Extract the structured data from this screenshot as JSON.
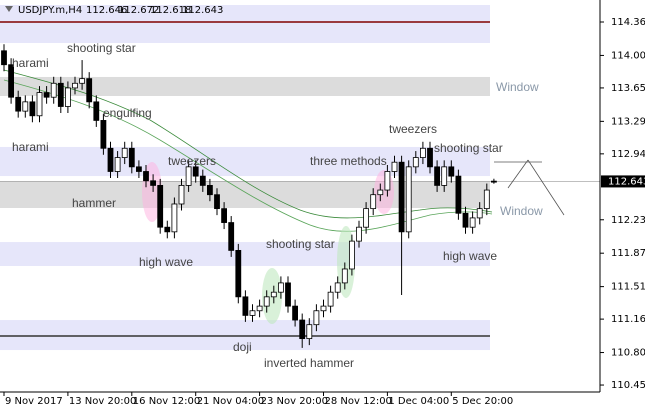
{
  "header": {
    "symbol": "USDJPY.m,H4",
    "open": 112.646,
    "high": 112.672,
    "low": 112.618,
    "close": 112.643
  },
  "annotations": [
    "harami",
    "shooting star",
    "engulfing",
    "harami",
    "hammer",
    "tweezers",
    "high wave",
    "three methods",
    "tweezers",
    "shooting star",
    "Window",
    "Window",
    "shooting star",
    "high wave",
    "doji",
    "inverted hammer"
  ],
  "chart_data": {
    "type": "candlestick",
    "categories": [
      "9 Nov 2017",
      null,
      null,
      null,
      null,
      null,
      null,
      null,
      null,
      "13 Nov 20:00",
      null,
      null,
      null,
      null,
      null,
      null,
      null,
      null,
      "16 Nov 12:00",
      null,
      null,
      null,
      null,
      null,
      null,
      null,
      null,
      "21 Nov 04:00",
      null,
      null,
      null,
      null,
      null,
      null,
      null,
      null,
      "23 Nov 20:00",
      null,
      null,
      null,
      null,
      null,
      null,
      null,
      null,
      "28 Nov 12:00",
      null,
      null,
      null,
      null,
      null,
      null,
      null,
      null,
      "1 Dec 04:00",
      null,
      null,
      null,
      null,
      null,
      null,
      null,
      null,
      "5 Dec 20:00",
      null,
      null,
      null,
      null,
      null,
      null
    ],
    "open": [
      114.05,
      113.9,
      113.55,
      113.4,
      113.5,
      113.35,
      113.6,
      113.55,
      113.7,
      113.45,
      113.65,
      113.7,
      113.75,
      113.5,
      113.3,
      113.0,
      112.75,
      112.9,
      113.0,
      112.8,
      112.75,
      112.65,
      112.6,
      112.15,
      112.1,
      112.4,
      112.6,
      112.8,
      112.7,
      112.6,
      112.5,
      112.35,
      112.2,
      111.9,
      111.4,
      111.2,
      111.25,
      111.3,
      111.4,
      111.45,
      111.55,
      111.3,
      111.15,
      110.95,
      111.1,
      111.25,
      111.3,
      111.45,
      111.55,
      111.7,
      112.0,
      112.15,
      112.35,
      112.5,
      112.55,
      112.75,
      112.85,
      112.1,
      112.8,
      112.9,
      113.0,
      112.8,
      112.6,
      112.8,
      112.7,
      112.3,
      112.15,
      112.25,
      112.35,
      112.646
    ],
    "high": [
      114.12,
      113.97,
      113.62,
      113.57,
      113.57,
      113.67,
      113.67,
      113.77,
      113.77,
      113.72,
      113.77,
      113.95,
      113.82,
      113.57,
      113.37,
      113.07,
      112.97,
      113.07,
      113.07,
      112.87,
      112.82,
      112.72,
      112.67,
      112.22,
      112.47,
      112.67,
      112.87,
      112.87,
      112.77,
      112.67,
      112.57,
      112.42,
      112.27,
      111.97,
      111.47,
      111.32,
      111.37,
      111.47,
      111.52,
      111.62,
      111.62,
      111.37,
      111.22,
      111.17,
      111.32,
      111.37,
      111.52,
      111.62,
      111.77,
      112.07,
      112.22,
      112.42,
      112.57,
      112.62,
      112.82,
      112.92,
      112.92,
      112.87,
      112.97,
      113.07,
      113.07,
      112.87,
      112.87,
      112.87,
      112.77,
      112.37,
      112.32,
      112.42,
      112.62,
      112.672
    ],
    "low": [
      113.83,
      113.48,
      113.33,
      113.33,
      113.28,
      113.28,
      113.48,
      113.48,
      113.38,
      113.38,
      113.58,
      113.63,
      113.43,
      113.23,
      112.93,
      112.68,
      112.68,
      112.83,
      112.73,
      112.68,
      112.58,
      112.53,
      112.08,
      112.03,
      112.03,
      112.33,
      112.53,
      112.63,
      112.53,
      112.43,
      112.28,
      112.13,
      111.83,
      111.33,
      111.13,
      111.13,
      111.18,
      111.23,
      111.33,
      111.38,
      111.23,
      111.08,
      110.85,
      110.88,
      111.03,
      111.18,
      111.23,
      111.38,
      111.48,
      111.63,
      111.93,
      112.08,
      112.28,
      112.43,
      112.48,
      112.68,
      111.42,
      112.03,
      112.73,
      112.83,
      112.73,
      112.53,
      112.53,
      112.63,
      112.23,
      112.08,
      112.08,
      112.18,
      112.28,
      112.618
    ],
    "close": [
      113.9,
      113.55,
      113.4,
      113.5,
      113.35,
      113.6,
      113.55,
      113.7,
      113.45,
      113.65,
      113.7,
      113.75,
      113.5,
      113.3,
      113.0,
      112.75,
      112.9,
      113.0,
      112.8,
      112.75,
      112.65,
      112.6,
      112.15,
      112.1,
      112.4,
      112.6,
      112.8,
      112.7,
      112.6,
      112.5,
      112.35,
      112.2,
      111.9,
      111.4,
      111.2,
      111.25,
      111.3,
      111.4,
      111.45,
      111.55,
      111.3,
      111.15,
      110.95,
      111.1,
      111.25,
      111.3,
      111.45,
      111.55,
      111.7,
      112.0,
      112.15,
      112.35,
      112.5,
      112.55,
      112.75,
      112.85,
      112.1,
      112.8,
      112.9,
      113.0,
      112.8,
      112.6,
      112.8,
      112.7,
      112.3,
      112.15,
      112.25,
      112.35,
      112.55,
      112.643
    ],
    "up_color": "#ffffff",
    "down_color": "#000000",
    "edge_color": "#000000",
    "current_price": 112.643,
    "zones": [
      {
        "from": 114.134,
        "to": 114.543,
        "color": "#e6e6fa"
      },
      {
        "from": 113.563,
        "to": 113.768,
        "color": "#dcdcdc"
      },
      {
        "from": 112.701,
        "to": 113.014,
        "color": "#e6e6fa"
      },
      {
        "from": 112.357,
        "to": 112.647,
        "color": "#dcdcdc"
      },
      {
        "from": 111.732,
        "to": 111.99,
        "color": "#e6e6fa"
      },
      {
        "from": 110.827,
        "to": 111.15,
        "color": "#e6e6fa"
      }
    ],
    "levels": [
      {
        "value": 114.36,
        "color": "#800000"
      },
      {
        "value": 110.978,
        "color": "#333333"
      }
    ],
    "ylim": [
      110.375,
      114.597
    ],
    "yticks": [
      {
        "value": 114.36,
        "label": "114.360"
      },
      {
        "value": 114.0,
        "label": "114.000"
      },
      {
        "value": 113.65,
        "label": "113.650"
      },
      {
        "value": 113.29,
        "label": "113.290"
      },
      {
        "value": 112.94,
        "label": "112.940"
      },
      {
        "value": 112.23,
        "label": "112.230"
      },
      {
        "value": 111.87,
        "label": "111.870"
      },
      {
        "value": 111.51,
        "label": "111.510"
      },
      {
        "value": 111.16,
        "label": "111.160"
      },
      {
        "value": 110.8,
        "label": "110.800"
      },
      {
        "value": 110.45,
        "label": "110.450"
      }
    ]
  }
}
